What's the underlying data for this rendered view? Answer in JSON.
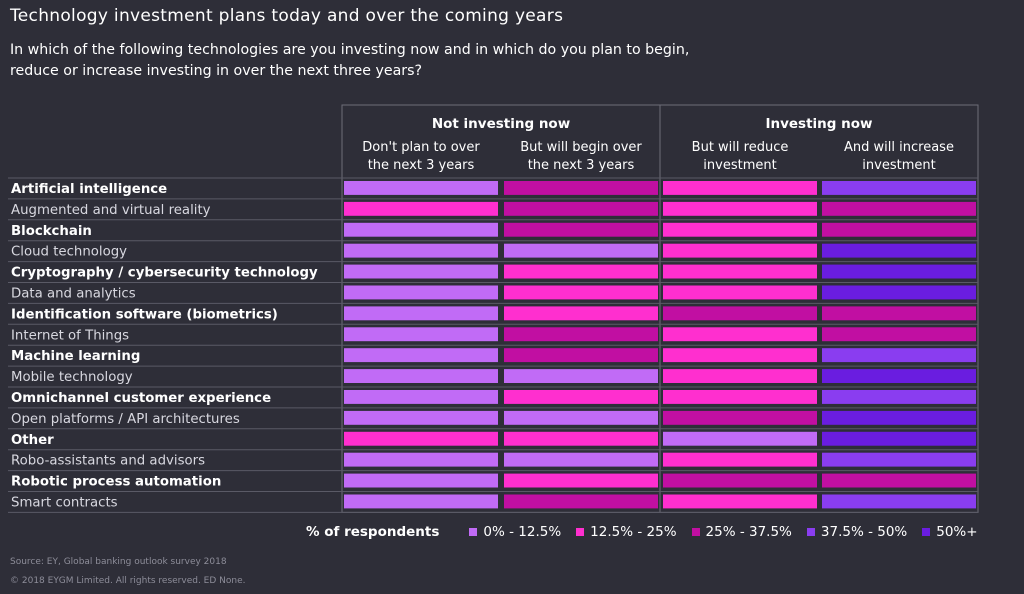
{
  "title": "Technology investment plans today and over the coming years",
  "subtitle": "In which of the following technologies are you investing now and in which do you plan to begin, reduce or increase investing in over the next three years?",
  "legend": {
    "label": "% of respondents",
    "items": [
      {
        "label": "0% - 12.5%",
        "color": "#c16bf6"
      },
      {
        "label": "12.5% - 25%",
        "color": "#ff2fcf"
      },
      {
        "label": "25% - 37.5%",
        "color": "#c10fa2"
      },
      {
        "label": "37.5% - 50%",
        "color": "#8a3df0"
      },
      {
        "label": "50%+",
        "color": "#6a1de0"
      }
    ]
  },
  "source": "Source: EY, Global banking outlook survey 2018",
  "copyright": "© 2018 EYGM Limited. All rights reserved. ED None.",
  "chart_data": {
    "type": "heatmap",
    "value_type": "range of % of respondents (legend bucket)",
    "groups": [
      {
        "label": "Not investing now",
        "columns": [
          0,
          1
        ]
      },
      {
        "label": "Investing now",
        "columns": [
          2,
          3
        ]
      }
    ],
    "columns": [
      "Don't plan to over the next 3 years",
      "But will begin over the next 3 years",
      "But will reduce investment",
      "And will increase investment"
    ],
    "buckets": [
      "0% - 12.5%",
      "12.5% - 25%",
      "25% - 37.5%",
      "37.5% - 50%",
      "50%+"
    ],
    "rows": [
      {
        "label": "Artificial intelligence",
        "values": [
          "0% - 12.5%",
          "25% - 37.5%",
          "12.5% - 25%",
          "37.5% - 50%"
        ]
      },
      {
        "label": "Augmented and virtual reality",
        "values": [
          "12.5% - 25%",
          "25% - 37.5%",
          "12.5% - 25%",
          "25% - 37.5%"
        ]
      },
      {
        "label": "Blockchain",
        "values": [
          "0% - 12.5%",
          "25% - 37.5%",
          "12.5% - 25%",
          "25% - 37.5%"
        ]
      },
      {
        "label": "Cloud technology",
        "values": [
          "0% - 12.5%",
          "0% - 12.5%",
          "12.5% - 25%",
          "50%+"
        ]
      },
      {
        "label": "Cryptography / cybersecurity technology",
        "values": [
          "0% - 12.5%",
          "12.5% - 25%",
          "12.5% - 25%",
          "50%+"
        ]
      },
      {
        "label": "Data and analytics",
        "values": [
          "0% - 12.5%",
          "12.5% - 25%",
          "12.5% - 25%",
          "50%+"
        ]
      },
      {
        "label": "Identification software (biometrics)",
        "values": [
          "0% - 12.5%",
          "12.5% - 25%",
          "25% - 37.5%",
          "25% - 37.5%"
        ]
      },
      {
        "label": "Internet of Things",
        "values": [
          "0% - 12.5%",
          "25% - 37.5%",
          "12.5% - 25%",
          "25% - 37.5%"
        ]
      },
      {
        "label": "Machine learning",
        "values": [
          "0% - 12.5%",
          "25% - 37.5%",
          "12.5% - 25%",
          "37.5% - 50%"
        ]
      },
      {
        "label": "Mobile technology",
        "values": [
          "0% - 12.5%",
          "0% - 12.5%",
          "12.5% - 25%",
          "50%+"
        ]
      },
      {
        "label": "Omnichannel customer experience",
        "values": [
          "0% - 12.5%",
          "12.5% - 25%",
          "12.5% - 25%",
          "37.5% - 50%"
        ]
      },
      {
        "label": "Open platforms / API architectures",
        "values": [
          "0% - 12.5%",
          "0% - 12.5%",
          "25% - 37.5%",
          "50%+"
        ]
      },
      {
        "label": "Other",
        "values": [
          "12.5% - 25%",
          "12.5% - 25%",
          "0% - 12.5%",
          "50%+"
        ]
      },
      {
        "label": "Robo-assistants and advisors",
        "values": [
          "0% - 12.5%",
          "0% - 12.5%",
          "12.5% - 25%",
          "37.5% - 50%"
        ]
      },
      {
        "label": "Robotic process automation",
        "values": [
          "0% - 12.5%",
          "12.5% - 25%",
          "25% - 37.5%",
          "25% - 37.5%"
        ]
      },
      {
        "label": "Smart contracts",
        "values": [
          "0% - 12.5%",
          "25% - 37.5%",
          "12.5% - 25%",
          "37.5% - 50%"
        ]
      }
    ]
  }
}
